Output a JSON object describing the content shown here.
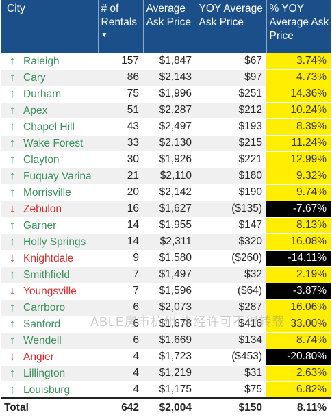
{
  "header": {
    "city": "City",
    "rentals": "# of Rentals",
    "avg_price": "Average Ask Price",
    "yoy_price": "YOY Average Ask Price",
    "pct_yoy": "% YOY Average Ask Price",
    "sort_indicator": "▼"
  },
  "colors": {
    "header_bg": "#1b4f8a",
    "up": "#3c8f5e",
    "down": "#d12d2d",
    "pct_positive_bg": "#ffee00",
    "pct_negative_bg": "#000000"
  },
  "rows": [
    {
      "dir": "up",
      "city": "Raleigh",
      "rentals": "157",
      "avg": "$1,847",
      "yoy": "$67",
      "pct": "3.74%"
    },
    {
      "dir": "up",
      "city": "Cary",
      "rentals": "86",
      "avg": "$2,143",
      "yoy": "$97",
      "pct": "4.73%"
    },
    {
      "dir": "up",
      "city": "Durham",
      "rentals": "75",
      "avg": "$1,996",
      "yoy": "$251",
      "pct": "14.36%"
    },
    {
      "dir": "up",
      "city": "Apex",
      "rentals": "51",
      "avg": "$2,287",
      "yoy": "$212",
      "pct": "10.24%"
    },
    {
      "dir": "up",
      "city": "Chapel Hill",
      "rentals": "43",
      "avg": "$2,497",
      "yoy": "$193",
      "pct": "8.39%"
    },
    {
      "dir": "up",
      "city": "Wake Forest",
      "rentals": "33",
      "avg": "$2,130",
      "yoy": "$215",
      "pct": "11.24%"
    },
    {
      "dir": "up",
      "city": "Clayton",
      "rentals": "30",
      "avg": "$1,926",
      "yoy": "$221",
      "pct": "12.99%"
    },
    {
      "dir": "up",
      "city": "Fuquay Varina",
      "rentals": "21",
      "avg": "$2,110",
      "yoy": "$180",
      "pct": "9.32%"
    },
    {
      "dir": "up",
      "city": "Morrisville",
      "rentals": "20",
      "avg": "$2,142",
      "yoy": "$190",
      "pct": "9.74%"
    },
    {
      "dir": "down",
      "city": "Zebulon",
      "rentals": "16",
      "avg": "$1,627",
      "yoy": "($135)",
      "pct": "-7.67%"
    },
    {
      "dir": "up",
      "city": "Garner",
      "rentals": "14",
      "avg": "$1,955",
      "yoy": "$147",
      "pct": "8.13%"
    },
    {
      "dir": "up",
      "city": "Holly Springs",
      "rentals": "14",
      "avg": "$2,311",
      "yoy": "$320",
      "pct": "16.08%"
    },
    {
      "dir": "down",
      "city": "Knightdale",
      "rentals": "9",
      "avg": "$1,580",
      "yoy": "($260)",
      "pct": "-14.11%"
    },
    {
      "dir": "up",
      "city": "Smithfield",
      "rentals": "7",
      "avg": "$1,497",
      "yoy": "$32",
      "pct": "2.19%"
    },
    {
      "dir": "down",
      "city": "Youngsville",
      "rentals": "7",
      "avg": "$1,596",
      "yoy": "($64)",
      "pct": "-3.87%"
    },
    {
      "dir": "up",
      "city": "Carrboro",
      "rentals": "6",
      "avg": "$2,073",
      "yoy": "$287",
      "pct": "16.06%"
    },
    {
      "dir": "up",
      "city": "Sanford",
      "rentals": "6",
      "avg": "$1,678",
      "yoy": "$416",
      "pct": "33.00%"
    },
    {
      "dir": "up",
      "city": "Wendell",
      "rentals": "6",
      "avg": "$1,669",
      "yoy": "$134",
      "pct": "8.74%"
    },
    {
      "dir": "down",
      "city": "Angier",
      "rentals": "4",
      "avg": "$1,723",
      "yoy": "($453)",
      "pct": "-20.80%"
    },
    {
      "dir": "up",
      "city": "Lillington",
      "rentals": "4",
      "avg": "$1,219",
      "yoy": "$31",
      "pct": "2.63%"
    },
    {
      "dir": "up",
      "city": "Louisburg",
      "rentals": "4",
      "avg": "$1,175",
      "yoy": "$75",
      "pct": "6.82%"
    }
  ],
  "total": {
    "label": "Total",
    "rentals": "642",
    "avg": "$2,004",
    "yoy": "$150",
    "pct": "8.11%"
  },
  "watermark": "ABLE房市杭州  未经许可不得转载"
}
